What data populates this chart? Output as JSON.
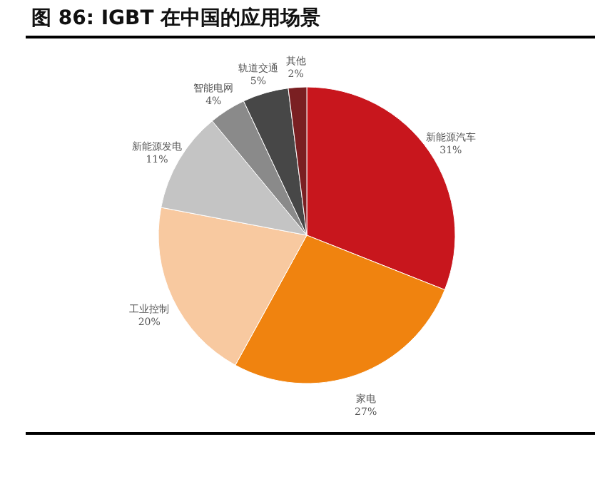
{
  "chart_data": {
    "type": "pie",
    "title": "图 86: IGBT 在中国的应用场景",
    "categories": [
      "新能源汽车",
      "家电",
      "工业控制",
      "新能源发电",
      "智能电网",
      "轨道交通",
      "其他"
    ],
    "values": [
      31,
      27,
      20,
      11,
      4,
      5,
      2
    ],
    "value_labels": [
      "31%",
      "27%",
      "20%",
      "11%",
      "4%",
      "5%",
      "2%"
    ],
    "colors": [
      "#c8161d",
      "#f0830f",
      "#f8c9a0",
      "#c4c4c4",
      "#8a8a8a",
      "#474747",
      "#7a1f22"
    ]
  }
}
